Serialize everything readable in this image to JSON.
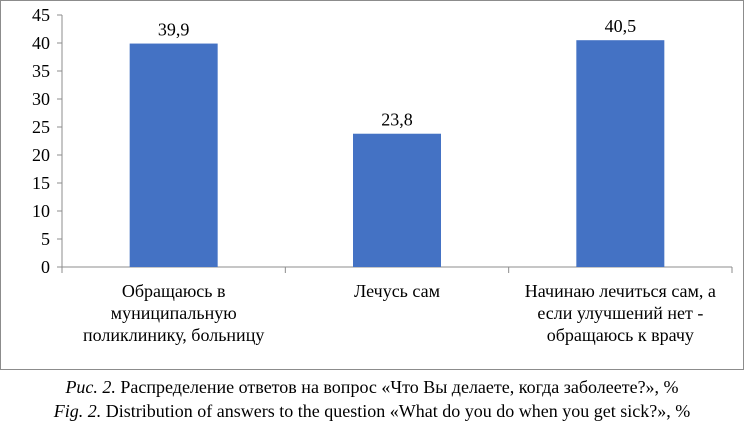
{
  "chart_data": {
    "type": "bar",
    "categories": [
      [
        "Обращаюсь в",
        "муниципальную",
        "поликлинику, больницу"
      ],
      [
        "Лечусь сам"
      ],
      [
        "Начинаю лечиться сам, а",
        "если улучшений нет -",
        "обращаюсь к врачу"
      ]
    ],
    "values": [
      39.9,
      23.8,
      40.5
    ],
    "value_labels": [
      "39,9",
      "23,8",
      "40,5"
    ],
    "ylim": [
      0,
      45
    ],
    "yticks": [
      0,
      5,
      10,
      15,
      20,
      25,
      30,
      35,
      40,
      45
    ],
    "bar_color": "#4472C4",
    "grid": false,
    "legend": "none"
  },
  "caption": {
    "ru_label": "Рис. 2.",
    "ru_text": " Распределение ответов на вопрос «Что Вы делаете, когда заболеете?», %",
    "en_label": "Fig. 2.",
    "en_text": " Distribution of answers to the question «What do you do when you get sick?», %"
  }
}
